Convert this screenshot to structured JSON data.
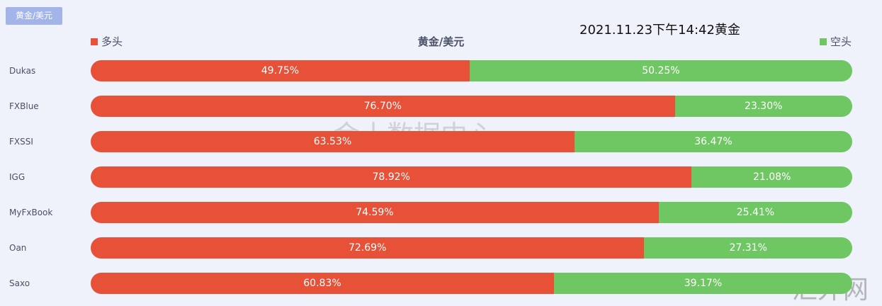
{
  "tab_label": "黄金/美元",
  "timestamp": "2021.11.23下午14:42黄金",
  "watermarks": [
    "金十数据中心",
    "汇外网"
  ],
  "chart_data": {
    "type": "bar",
    "stacked": true,
    "orientation": "horizontal",
    "title": "黄金/美元",
    "legend": [
      {
        "name": "多头",
        "color": "#e65138",
        "position": "top-left"
      },
      {
        "name": "空头",
        "color": "#6fc763",
        "position": "top-right"
      }
    ],
    "categories": [
      "Dukas",
      "FXBlue",
      "FXSSI",
      "IGG",
      "MyFxBook",
      "Oan",
      "Saxo"
    ],
    "series": [
      {
        "name": "多头",
        "color": "#e65138",
        "values": [
          49.75,
          76.7,
          63.53,
          78.92,
          74.59,
          72.69,
          60.83
        ]
      },
      {
        "name": "空头",
        "color": "#6fc763",
        "values": [
          50.25,
          23.3,
          36.47,
          21.08,
          25.41,
          27.31,
          39.17
        ]
      }
    ],
    "xlim": [
      0,
      100
    ]
  }
}
